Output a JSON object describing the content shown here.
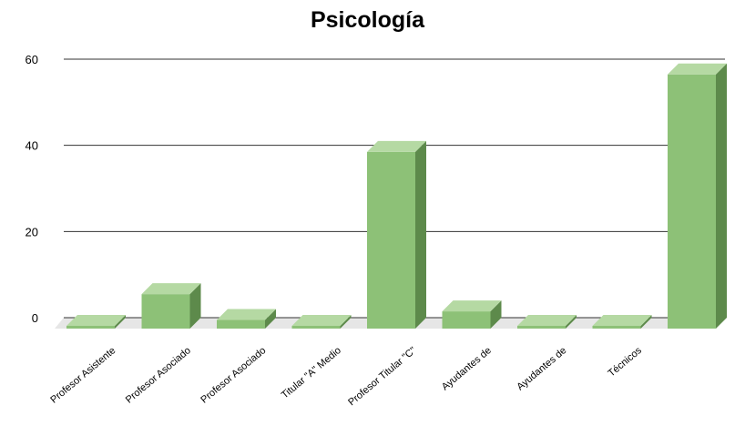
{
  "chart_data": {
    "type": "bar",
    "title": "Psicología",
    "xlabel": "",
    "ylabel": "",
    "categories": [
      "Profesor Asistente",
      "Profesor Asociado",
      "Profesor Asociado",
      "Titular \"A\" Medio",
      "Profesor Titular \"C\"",
      "Ayudantes de",
      "Ayudantes de",
      "Técnicos",
      ""
    ],
    "values": [
      0,
      8,
      2,
      0,
      41,
      4,
      0,
      0,
      59
    ],
    "ylim": [
      0,
      60
    ],
    "yticks": [
      0,
      20,
      40,
      60
    ],
    "grid": true,
    "bar_color": "#8dc177"
  }
}
